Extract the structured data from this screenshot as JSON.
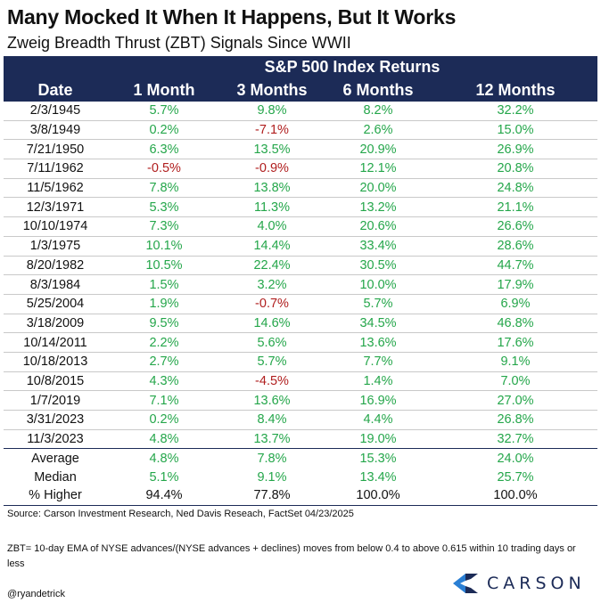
{
  "title": "Many Mocked It When It Happens, But It Works",
  "subtitle": "Zweig Breadth Thrust (ZBT) Signals Since WWII",
  "table": {
    "group_header": "S&P 500 Index Returns",
    "columns": [
      "Date",
      "1 Month",
      "3 Months",
      "6 Months",
      "12 Months"
    ],
    "rows": [
      {
        "date": "2/3/1945",
        "values": [
          "5.7%",
          "9.8%",
          "8.2%",
          "32.2%"
        ]
      },
      {
        "date": "3/8/1949",
        "values": [
          "0.2%",
          "-7.1%",
          "2.6%",
          "15.0%"
        ]
      },
      {
        "date": "7/21/1950",
        "values": [
          "6.3%",
          "13.5%",
          "20.9%",
          "26.9%"
        ]
      },
      {
        "date": "7/11/1962",
        "values": [
          "-0.5%",
          "-0.9%",
          "12.1%",
          "20.8%"
        ]
      },
      {
        "date": "11/5/1962",
        "values": [
          "7.8%",
          "13.8%",
          "20.0%",
          "24.8%"
        ]
      },
      {
        "date": "12/3/1971",
        "values": [
          "5.3%",
          "11.3%",
          "13.2%",
          "21.1%"
        ]
      },
      {
        "date": "10/10/1974",
        "values": [
          "7.3%",
          "4.0%",
          "20.6%",
          "26.6%"
        ]
      },
      {
        "date": "1/3/1975",
        "values": [
          "10.1%",
          "14.4%",
          "33.4%",
          "28.6%"
        ]
      },
      {
        "date": "8/20/1982",
        "values": [
          "10.5%",
          "22.4%",
          "30.5%",
          "44.7%"
        ]
      },
      {
        "date": "8/3/1984",
        "values": [
          "1.5%",
          "3.2%",
          "10.0%",
          "17.9%"
        ]
      },
      {
        "date": "5/25/2004",
        "values": [
          "1.9%",
          "-0.7%",
          "5.7%",
          "6.9%"
        ]
      },
      {
        "date": "3/18/2009",
        "values": [
          "9.5%",
          "14.6%",
          "34.5%",
          "46.8%"
        ]
      },
      {
        "date": "10/14/2011",
        "values": [
          "2.2%",
          "5.6%",
          "13.6%",
          "17.6%"
        ]
      },
      {
        "date": "10/18/2013",
        "values": [
          "2.7%",
          "5.7%",
          "7.7%",
          "9.1%"
        ]
      },
      {
        "date": "10/8/2015",
        "values": [
          "4.3%",
          "-4.5%",
          "1.4%",
          "7.0%"
        ]
      },
      {
        "date": "1/7/2019",
        "values": [
          "7.1%",
          "13.6%",
          "16.9%",
          "27.0%"
        ]
      },
      {
        "date": "3/31/2023",
        "values": [
          "0.2%",
          "8.4%",
          "4.4%",
          "26.8%"
        ]
      },
      {
        "date": "11/3/2023",
        "values": [
          "4.8%",
          "13.7%",
          "19.0%",
          "32.7%"
        ]
      }
    ],
    "summary": [
      {
        "label": "Average",
        "values": [
          "4.8%",
          "7.8%",
          "15.3%",
          "24.0%"
        ],
        "colored": true
      },
      {
        "label": "Median",
        "values": [
          "5.1%",
          "9.1%",
          "13.4%",
          "25.7%"
        ],
        "colored": true
      },
      {
        "label": "% Higher",
        "values": [
          "94.4%",
          "77.8%",
          "100.0%",
          "100.0%"
        ],
        "colored": false
      }
    ]
  },
  "source": "Source: Carson Investment Research, Ned Davis Reseach, FactSet 04/23/2025",
  "note": "ZBT= 10-day EMA of NYSE advances/(NYSE advances + declines) moves from below 0.4 to above 0.615 within 10 trading days or less",
  "handle": "@ryandetrick",
  "logo": {
    "text": "CARSON",
    "icon": "carson-logo-icon"
  },
  "colors": {
    "header_bg": "#1c2b57",
    "positive": "#24a64a",
    "negative": "#b01e1e"
  }
}
